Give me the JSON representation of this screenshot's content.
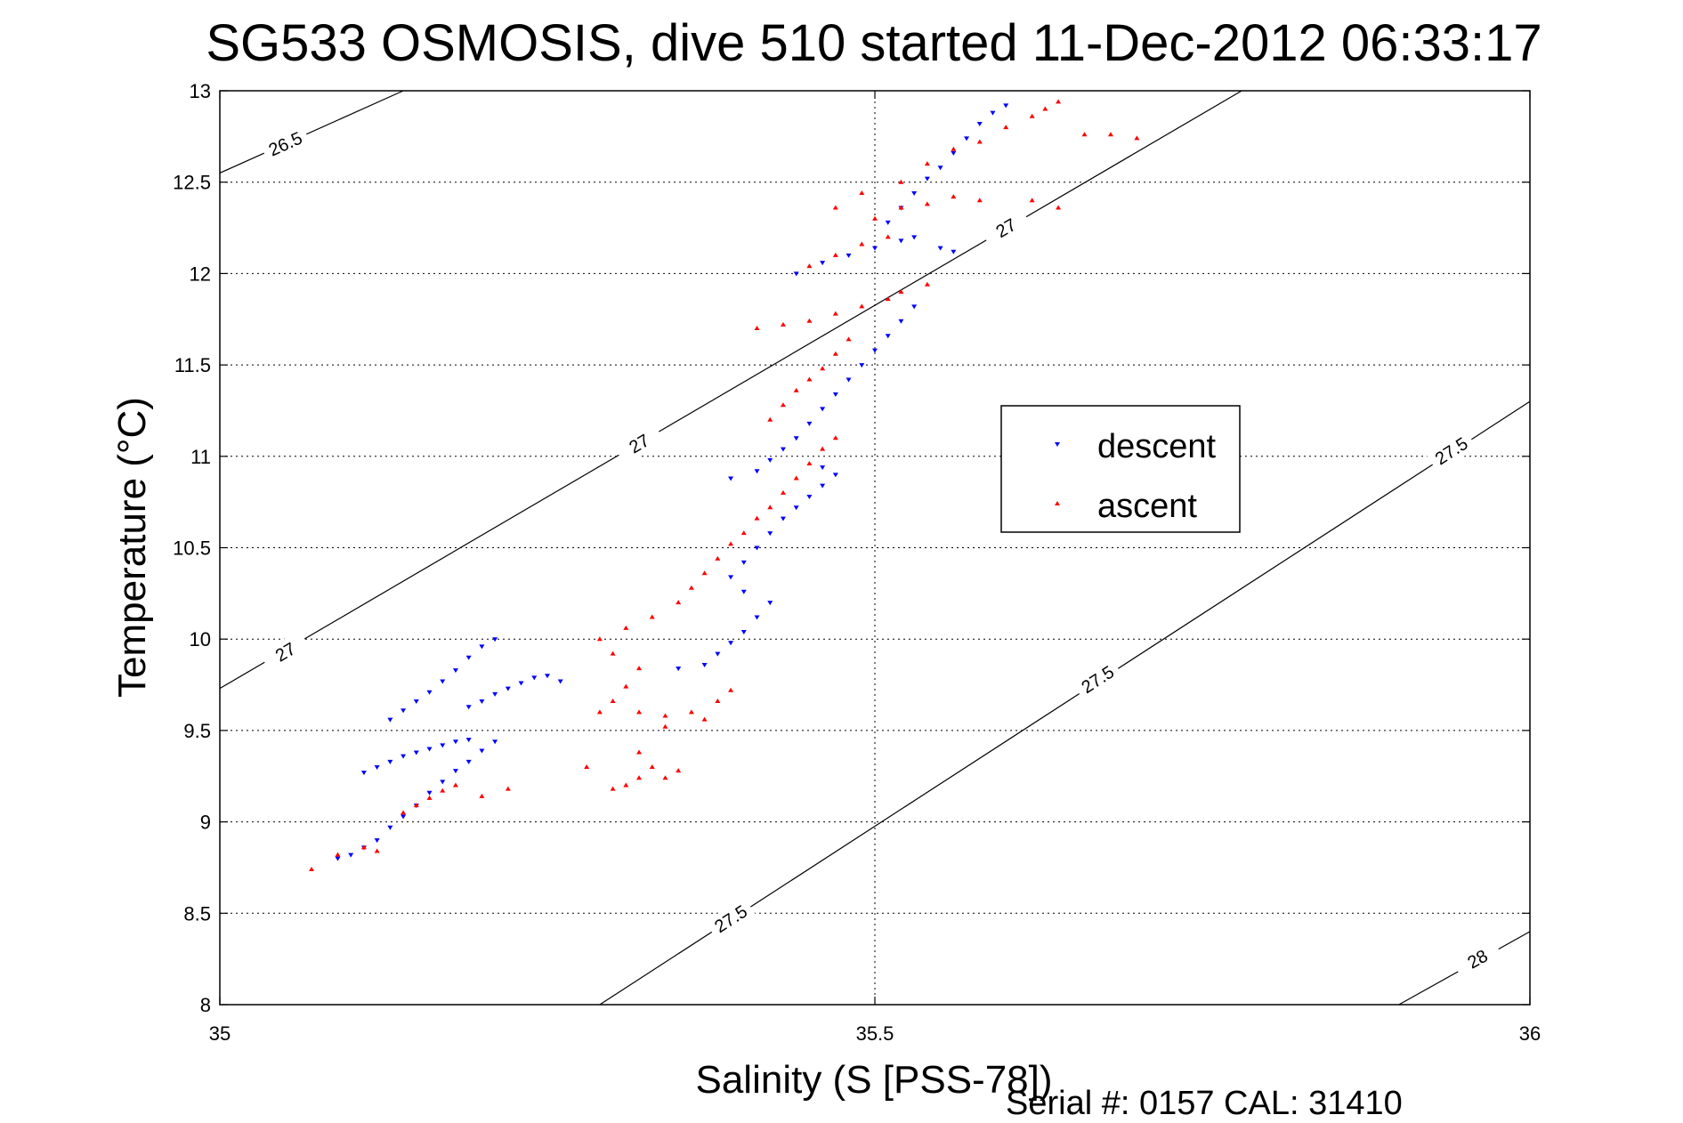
{
  "chart_data": {
    "type": "scatter",
    "title": "SG533 OSMOSIS, dive 510 started 11-Dec-2012 06:33:17",
    "xlabel": "Salinity (S [PSS-78])",
    "ylabel": "Temperature (°C)",
    "xlim": [
      35,
      36
    ],
    "ylim": [
      8,
      13
    ],
    "x_ticks": [
      "35",
      "35.5",
      "36"
    ],
    "y_ticks": [
      "8",
      "8.5",
      "9",
      "9.5",
      "10",
      "10.5",
      "11",
      "11.5",
      "12",
      "12.5",
      "13"
    ],
    "grid": true,
    "legend_position": "right-center",
    "series": [
      {
        "name": "descent",
        "color": "#0000ff",
        "marker": "triangle-down",
        "points": [
          [
            35.09,
            8.8
          ],
          [
            35.1,
            8.82
          ],
          [
            35.11,
            8.86
          ],
          [
            35.12,
            8.9
          ],
          [
            35.13,
            8.97
          ],
          [
            35.14,
            9.03
          ],
          [
            35.15,
            9.09
          ],
          [
            35.16,
            9.16
          ],
          [
            35.17,
            9.22
          ],
          [
            35.18,
            9.28
          ],
          [
            35.19,
            9.33
          ],
          [
            35.2,
            9.39
          ],
          [
            35.21,
            9.44
          ],
          [
            35.11,
            9.27
          ],
          [
            35.12,
            9.3
          ],
          [
            35.13,
            9.33
          ],
          [
            35.14,
            9.36
          ],
          [
            35.15,
            9.38
          ],
          [
            35.16,
            9.4
          ],
          [
            35.17,
            9.42
          ],
          [
            35.18,
            9.44
          ],
          [
            35.19,
            9.45
          ],
          [
            35.13,
            9.56
          ],
          [
            35.14,
            9.61
          ],
          [
            35.15,
            9.66
          ],
          [
            35.16,
            9.71
          ],
          [
            35.17,
            9.77
          ],
          [
            35.18,
            9.83
          ],
          [
            35.19,
            9.9
          ],
          [
            35.2,
            9.96
          ],
          [
            35.21,
            10.0
          ],
          [
            35.19,
            9.63
          ],
          [
            35.2,
            9.66
          ],
          [
            35.21,
            9.7
          ],
          [
            35.22,
            9.73
          ],
          [
            35.23,
            9.76
          ],
          [
            35.24,
            9.79
          ],
          [
            35.25,
            9.8
          ],
          [
            35.26,
            9.77
          ],
          [
            35.35,
            9.84
          ],
          [
            35.37,
            9.86
          ],
          [
            35.38,
            9.92
          ],
          [
            35.39,
            9.98
          ],
          [
            35.4,
            10.04
          ],
          [
            35.41,
            10.12
          ],
          [
            35.42,
            10.2
          ],
          [
            35.4,
            10.26
          ],
          [
            35.39,
            10.34
          ],
          [
            35.4,
            10.42
          ],
          [
            35.41,
            10.5
          ],
          [
            35.42,
            10.58
          ],
          [
            35.43,
            10.66
          ],
          [
            35.44,
            10.72
          ],
          [
            35.45,
            10.78
          ],
          [
            35.46,
            10.84
          ],
          [
            35.47,
            10.9
          ],
          [
            35.46,
            10.94
          ],
          [
            35.39,
            10.88
          ],
          [
            35.41,
            10.92
          ],
          [
            35.42,
            10.98
          ],
          [
            35.43,
            11.04
          ],
          [
            35.44,
            11.1
          ],
          [
            35.45,
            11.18
          ],
          [
            35.46,
            11.26
          ],
          [
            35.47,
            11.34
          ],
          [
            35.48,
            11.42
          ],
          [
            35.49,
            11.5
          ],
          [
            35.5,
            11.58
          ],
          [
            35.51,
            11.66
          ],
          [
            35.52,
            11.74
          ],
          [
            35.53,
            11.82
          ],
          [
            35.44,
            12.0
          ],
          [
            35.46,
            12.06
          ],
          [
            35.48,
            12.1
          ],
          [
            35.5,
            12.14
          ],
          [
            35.52,
            12.18
          ],
          [
            35.53,
            12.2
          ],
          [
            35.55,
            12.14
          ],
          [
            35.56,
            12.12
          ],
          [
            35.51,
            12.28
          ],
          [
            35.52,
            12.36
          ],
          [
            35.53,
            12.44
          ],
          [
            35.54,
            12.52
          ],
          [
            35.55,
            12.58
          ],
          [
            35.56,
            12.66
          ],
          [
            35.57,
            12.74
          ],
          [
            35.58,
            12.82
          ],
          [
            35.59,
            12.88
          ],
          [
            35.6,
            12.92
          ]
        ]
      },
      {
        "name": "ascent",
        "color": "#ff0000",
        "marker": "triangle-up",
        "points": [
          [
            35.07,
            8.74
          ],
          [
            35.09,
            8.82
          ],
          [
            35.11,
            8.86
          ],
          [
            35.12,
            8.84
          ],
          [
            35.14,
            9.05
          ],
          [
            35.15,
            9.09
          ],
          [
            35.16,
            9.13
          ],
          [
            35.17,
            9.17
          ],
          [
            35.18,
            9.2
          ],
          [
            35.2,
            9.14
          ],
          [
            35.22,
            9.18
          ],
          [
            35.28,
            9.3
          ],
          [
            35.3,
            9.18
          ],
          [
            35.31,
            9.2
          ],
          [
            35.32,
            9.24
          ],
          [
            35.33,
            9.3
          ],
          [
            35.34,
            9.24
          ],
          [
            35.35,
            9.28
          ],
          [
            35.32,
            9.38
          ],
          [
            35.29,
            9.6
          ],
          [
            35.3,
            9.66
          ],
          [
            35.31,
            9.74
          ],
          [
            35.32,
            9.84
          ],
          [
            35.3,
            9.92
          ],
          [
            35.29,
            10.0
          ],
          [
            35.31,
            10.06
          ],
          [
            35.33,
            10.12
          ],
          [
            35.32,
            9.6
          ],
          [
            35.34,
            9.58
          ],
          [
            35.36,
            9.6
          ],
          [
            35.38,
            9.66
          ],
          [
            35.39,
            9.72
          ],
          [
            35.37,
            9.56
          ],
          [
            35.34,
            9.52
          ],
          [
            35.35,
            10.2
          ],
          [
            35.36,
            10.28
          ],
          [
            35.37,
            10.36
          ],
          [
            35.38,
            10.44
          ],
          [
            35.39,
            10.52
          ],
          [
            35.4,
            10.58
          ],
          [
            35.41,
            10.66
          ],
          [
            35.42,
            10.72
          ],
          [
            35.43,
            10.8
          ],
          [
            35.44,
            10.88
          ],
          [
            35.45,
            10.96
          ],
          [
            35.46,
            11.04
          ],
          [
            35.47,
            11.1
          ],
          [
            35.42,
            11.2
          ],
          [
            35.43,
            11.28
          ],
          [
            35.44,
            11.36
          ],
          [
            35.45,
            11.42
          ],
          [
            35.46,
            11.48
          ],
          [
            35.47,
            11.56
          ],
          [
            35.48,
            11.64
          ],
          [
            35.41,
            11.7
          ],
          [
            35.43,
            11.72
          ],
          [
            35.45,
            11.74
          ],
          [
            35.47,
            11.78
          ],
          [
            35.49,
            11.82
          ],
          [
            35.51,
            11.86
          ],
          [
            35.52,
            11.9
          ],
          [
            35.54,
            11.94
          ],
          [
            35.45,
            12.04
          ],
          [
            35.47,
            12.1
          ],
          [
            35.49,
            12.16
          ],
          [
            35.51,
            12.2
          ],
          [
            35.5,
            12.3
          ],
          [
            35.52,
            12.36
          ],
          [
            35.54,
            12.38
          ],
          [
            35.56,
            12.42
          ],
          [
            35.58,
            12.4
          ],
          [
            35.47,
            12.36
          ],
          [
            35.49,
            12.44
          ],
          [
            35.52,
            12.5
          ],
          [
            35.54,
            12.6
          ],
          [
            35.56,
            12.68
          ],
          [
            35.58,
            12.72
          ],
          [
            35.6,
            12.8
          ],
          [
            35.62,
            12.86
          ],
          [
            35.63,
            12.9
          ],
          [
            35.64,
            12.94
          ],
          [
            35.66,
            12.76
          ],
          [
            35.68,
            12.76
          ],
          [
            35.7,
            12.74
          ],
          [
            35.62,
            12.4
          ],
          [
            35.64,
            12.36
          ]
        ]
      }
    ],
    "contours": [
      {
        "label": "26.5",
        "points": [
          [
            35.0,
            12.55
          ],
          [
            35.14,
            13.0
          ]
        ],
        "labels_at": [
          [
            35.05,
            12.71
          ]
        ]
      },
      {
        "label": "27",
        "points": [
          [
            35.0,
            9.73
          ],
          [
            35.78,
            13.0
          ]
        ],
        "labels_at": [
          [
            35.05,
            9.93
          ],
          [
            35.32,
            11.07
          ],
          [
            35.6,
            12.25
          ]
        ]
      },
      {
        "label": "27.5",
        "points": [
          [
            35.29,
            8.0
          ],
          [
            36.0,
            11.3
          ]
        ],
        "labels_at": [
          [
            35.39,
            8.47
          ],
          [
            35.67,
            9.78
          ],
          [
            35.94,
            11.03
          ]
        ]
      },
      {
        "label": "28",
        "points": [
          [
            35.9,
            8.0
          ],
          [
            36.0,
            8.4
          ]
        ],
        "labels_at": [
          [
            35.96,
            8.25
          ]
        ]
      }
    ]
  },
  "legend": {
    "descent_label": "descent",
    "ascent_label": "ascent"
  },
  "footer": {
    "serial_text": "Serial #: 0157  CAL: 31410"
  }
}
